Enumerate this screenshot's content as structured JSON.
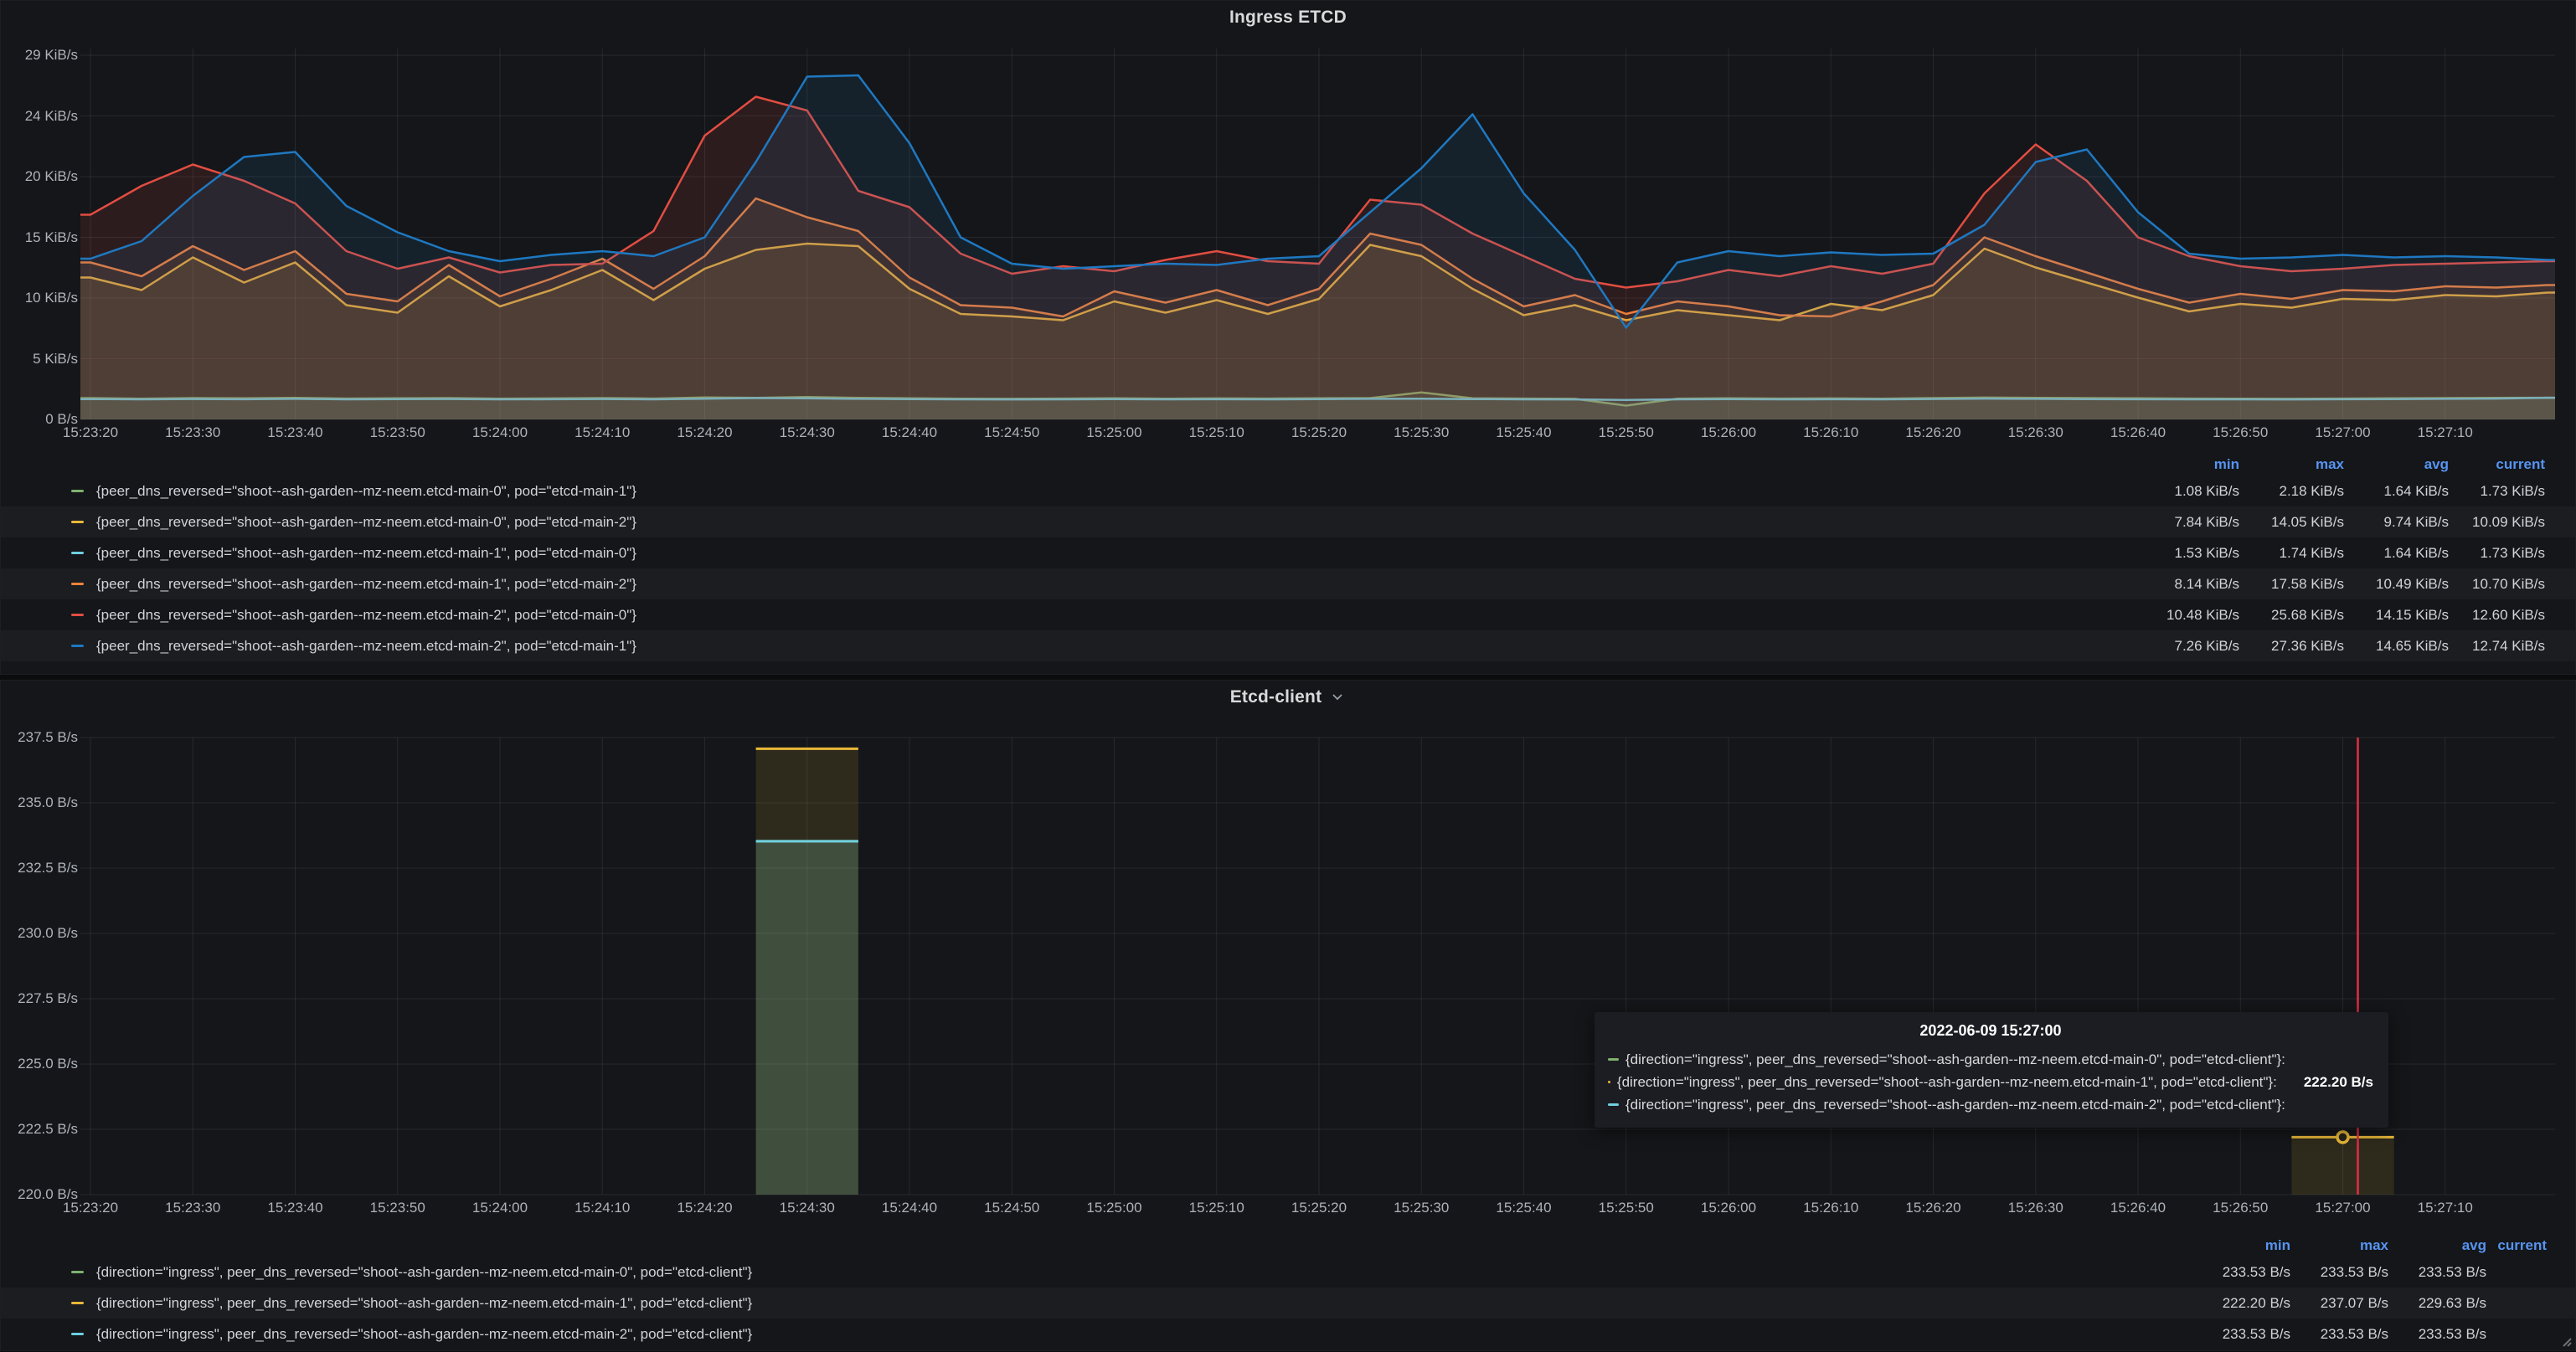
{
  "colors": {
    "green": "#7EB26D",
    "yellow": "#EAB839",
    "cyan": "#6ED0E0",
    "orange": "#EF843C",
    "red": "#E24D42",
    "blue": "#1F78C1",
    "stat_header": "#5794F2",
    "crosshair": "#E02F44",
    "panel_bg": "#141619",
    "grid": "rgba(204,204,220,0.10)"
  },
  "panels": [
    {
      "title": "Ingress ETCD",
      "y_ticks": [
        "29 KiB/s",
        "24 KiB/s",
        "20 KiB/s",
        "15 KiB/s",
        "10 KiB/s",
        "5 KiB/s",
        "0 B/s"
      ],
      "x_ticks": [
        "15:23:20",
        "15:23:30",
        "15:23:40",
        "15:23:50",
        "15:24:00",
        "15:24:10",
        "15:24:20",
        "15:24:30",
        "15:24:40",
        "15:24:50",
        "15:25:00",
        "15:25:10",
        "15:25:20",
        "15:25:30",
        "15:25:40",
        "15:25:50",
        "15:26:00",
        "15:26:10",
        "15:26:20",
        "15:26:30",
        "15:26:40",
        "15:26:50",
        "15:27:00",
        "15:27:10"
      ],
      "stats_headers": [
        "min",
        "max",
        "avg",
        "current"
      ],
      "legend": [
        {
          "color_key": "green",
          "label": "{peer_dns_reversed=\"shoot--ash-garden--mz-neem.etcd-main-0\", pod=\"etcd-main-1\"}",
          "min": "1.08 KiB/s",
          "max": "2.18 KiB/s",
          "avg": "1.64 KiB/s",
          "current": "1.73 KiB/s"
        },
        {
          "color_key": "yellow",
          "label": "{peer_dns_reversed=\"shoot--ash-garden--mz-neem.etcd-main-0\", pod=\"etcd-main-2\"}",
          "min": "7.84 KiB/s",
          "max": "14.05 KiB/s",
          "avg": "9.74 KiB/s",
          "current": "10.09 KiB/s"
        },
        {
          "color_key": "cyan",
          "label": "{peer_dns_reversed=\"shoot--ash-garden--mz-neem.etcd-main-1\", pod=\"etcd-main-0\"}",
          "min": "1.53 KiB/s",
          "max": "1.74 KiB/s",
          "avg": "1.64 KiB/s",
          "current": "1.73 KiB/s"
        },
        {
          "color_key": "orange",
          "label": "{peer_dns_reversed=\"shoot--ash-garden--mz-neem.etcd-main-1\", pod=\"etcd-main-2\"}",
          "min": "8.14 KiB/s",
          "max": "17.58 KiB/s",
          "avg": "10.49 KiB/s",
          "current": "10.70 KiB/s"
        },
        {
          "color_key": "red",
          "label": "{peer_dns_reversed=\"shoot--ash-garden--mz-neem.etcd-main-2\", pod=\"etcd-main-0\"}",
          "min": "10.48 KiB/s",
          "max": "25.68 KiB/s",
          "avg": "14.15 KiB/s",
          "current": "12.60 KiB/s"
        },
        {
          "color_key": "blue",
          "label": "{peer_dns_reversed=\"shoot--ash-garden--mz-neem.etcd-main-2\", pod=\"etcd-main-1\"}",
          "min": "7.26 KiB/s",
          "max": "27.36 KiB/s",
          "avg": "14.65 KiB/s",
          "current": "12.74 KiB/s"
        }
      ]
    },
    {
      "title": "Etcd-client",
      "y_ticks": [
        "237.5 B/s",
        "235.0 B/s",
        "232.5 B/s",
        "230.0 B/s",
        "227.5 B/s",
        "225.0 B/s",
        "222.5 B/s",
        "220.0 B/s"
      ],
      "x_ticks": [
        "15:23:20",
        "15:23:30",
        "15:23:40",
        "15:23:50",
        "15:24:00",
        "15:24:10",
        "15:24:20",
        "15:24:30",
        "15:24:40",
        "15:24:50",
        "15:25:00",
        "15:25:10",
        "15:25:20",
        "15:25:30",
        "15:25:40",
        "15:25:50",
        "15:26:00",
        "15:26:10",
        "15:26:20",
        "15:26:30",
        "15:26:40",
        "15:26:50",
        "15:27:00",
        "15:27:10"
      ],
      "stats_headers": [
        "min",
        "max",
        "avg",
        "current"
      ],
      "legend": [
        {
          "color_key": "green",
          "label": "{direction=\"ingress\", peer_dns_reversed=\"shoot--ash-garden--mz-neem.etcd-main-0\", pod=\"etcd-client\"}",
          "min": "233.53 B/s",
          "max": "233.53 B/s",
          "avg": "233.53 B/s",
          "current": ""
        },
        {
          "color_key": "yellow",
          "label": "{direction=\"ingress\", peer_dns_reversed=\"shoot--ash-garden--mz-neem.etcd-main-1\", pod=\"etcd-client\"}",
          "min": "222.20 B/s",
          "max": "237.07 B/s",
          "avg": "229.63 B/s",
          "current": ""
        },
        {
          "color_key": "cyan",
          "label": "{direction=\"ingress\", peer_dns_reversed=\"shoot--ash-garden--mz-neem.etcd-main-2\", pod=\"etcd-client\"}",
          "min": "233.53 B/s",
          "max": "233.53 B/s",
          "avg": "233.53 B/s",
          "current": ""
        }
      ],
      "tooltip": {
        "title": "2022-06-09 15:27:00",
        "rows": [
          {
            "color_key": "green",
            "label": "{direction=\"ingress\", peer_dns_reversed=\"shoot--ash-garden--mz-neem.etcd-main-0\", pod=\"etcd-client\"}:",
            "value": ""
          },
          {
            "color_key": "yellow",
            "label": "{direction=\"ingress\", peer_dns_reversed=\"shoot--ash-garden--mz-neem.etcd-main-1\", pod=\"etcd-client\"}:",
            "value": "222.20 B/s"
          },
          {
            "color_key": "cyan",
            "label": "{direction=\"ingress\", peer_dns_reversed=\"shoot--ash-garden--mz-neem.etcd-main-2\", pod=\"etcd-client\"}:",
            "value": ""
          }
        ]
      },
      "crosshair_time": "15:27:00"
    }
  ],
  "chart_data": [
    {
      "type": "area",
      "title": "Ingress ETCD",
      "unit": "KiB/s",
      "ylabel": "",
      "xlabel": "time",
      "ylim": [
        0,
        29
      ],
      "grid": true,
      "legend_position": "bottom-table",
      "x_start": "15:23:20",
      "x_end": "15:27:20",
      "x_step_seconds": 5,
      "series": [
        {
          "name": "{peer_dns_reversed=\"shoot--ash-garden--mz-neem.etcd-main-0\", pod=\"etcd-main-1\"}",
          "color_key": "green",
          "values": [
            1.7,
            1.65,
            1.7,
            1.68,
            1.72,
            1.66,
            1.68,
            1.7,
            1.65,
            1.67,
            1.7,
            1.66,
            1.75,
            1.72,
            1.78,
            1.72,
            1.68,
            1.65,
            1.64,
            1.66,
            1.68,
            1.65,
            1.67,
            1.66,
            1.68,
            1.7,
            2.15,
            1.68,
            1.66,
            1.64,
            1.1,
            1.65,
            1.68,
            1.66,
            1.67,
            1.65,
            1.7,
            1.74,
            1.72,
            1.7,
            1.68,
            1.66,
            1.65,
            1.64,
            1.66,
            1.68,
            1.7,
            1.72,
            1.73
          ]
        },
        {
          "name": "{peer_dns_reversed=\"shoot--ash-garden--mz-neem.etcd-main-0\", pod=\"etcd-main-2\"}",
          "color_key": "yellow",
          "values": [
            11.3,
            10.3,
            12.9,
            10.9,
            12.5,
            9.1,
            8.5,
            11.4,
            9.0,
            10.3,
            11.9,
            9.5,
            12.0,
            13.5,
            14.0,
            13.8,
            10.4,
            8.4,
            8.2,
            7.9,
            9.4,
            8.5,
            9.5,
            8.4,
            9.6,
            13.9,
            13.0,
            10.4,
            8.3,
            9.1,
            7.9,
            8.7,
            8.3,
            7.9,
            9.2,
            8.7,
            9.9,
            13.6,
            12.1,
            10.9,
            9.7,
            8.6,
            9.2,
            8.9,
            9.6,
            9.5,
            9.9,
            9.8,
            10.1
          ]
        },
        {
          "name": "{peer_dns_reversed=\"shoot--ash-garden--mz-neem.etcd-main-1\", pod=\"etcd-main-0\"}",
          "color_key": "cyan",
          "values": [
            1.62,
            1.6,
            1.63,
            1.61,
            1.64,
            1.6,
            1.62,
            1.63,
            1.6,
            1.61,
            1.63,
            1.6,
            1.65,
            1.7,
            1.68,
            1.64,
            1.62,
            1.6,
            1.59,
            1.6,
            1.62,
            1.6,
            1.61,
            1.6,
            1.62,
            1.64,
            1.65,
            1.62,
            1.6,
            1.59,
            1.55,
            1.6,
            1.62,
            1.6,
            1.61,
            1.6,
            1.63,
            1.66,
            1.64,
            1.62,
            1.61,
            1.6,
            1.6,
            1.59,
            1.61,
            1.62,
            1.64,
            1.66,
            1.73
          ]
        },
        {
          "name": "{peer_dns_reversed=\"shoot--ash-garden--mz-neem.etcd-main-1\", pod=\"etcd-main-2\"}",
          "color_key": "orange",
          "values": [
            12.5,
            11.4,
            13.8,
            11.9,
            13.4,
            10.0,
            9.4,
            12.3,
            9.8,
            11.2,
            12.8,
            10.4,
            13.0,
            17.6,
            16.1,
            15.0,
            11.3,
            9.1,
            8.9,
            8.2,
            10.2,
            9.3,
            10.3,
            9.1,
            10.4,
            14.8,
            13.9,
            11.2,
            9.0,
            9.9,
            8.4,
            9.4,
            9.0,
            8.3,
            8.2,
            9.4,
            10.7,
            14.5,
            13.0,
            11.7,
            10.4,
            9.3,
            10.0,
            9.6,
            10.3,
            10.2,
            10.6,
            10.5,
            10.7
          ]
        },
        {
          "name": "{peer_dns_reversed=\"shoot--ash-garden--mz-neem.etcd-main-2\", pod=\"etcd-main-0\"}",
          "color_key": "red",
          "values": [
            16.3,
            18.6,
            20.3,
            19.0,
            17.2,
            13.4,
            12.0,
            12.9,
            11.7,
            12.3,
            12.4,
            15.0,
            22.6,
            25.7,
            24.6,
            18.2,
            16.9,
            13.2,
            11.6,
            12.2,
            11.8,
            12.7,
            13.4,
            12.6,
            12.4,
            17.5,
            17.1,
            14.8,
            13.0,
            11.2,
            10.5,
            11.0,
            11.9,
            11.4,
            12.2,
            11.6,
            12.4,
            18.0,
            21.9,
            19.0,
            14.5,
            13.0,
            12.2,
            11.8,
            12.0,
            12.3,
            12.4,
            12.5,
            12.6
          ]
        },
        {
          "name": "{peer_dns_reversed=\"shoot--ash-garden--mz-neem.etcd-main-2\", pod=\"etcd-main-1\"}",
          "color_key": "blue",
          "values": [
            12.8,
            14.2,
            17.8,
            20.9,
            21.3,
            17.0,
            14.9,
            13.4,
            12.6,
            13.1,
            13.4,
            13.0,
            14.5,
            20.5,
            27.3,
            27.4,
            22.0,
            14.5,
            12.4,
            12.0,
            12.2,
            12.4,
            12.3,
            12.8,
            13.0,
            16.5,
            20.0,
            24.3,
            18.0,
            13.5,
            7.3,
            12.5,
            13.4,
            13.0,
            13.3,
            13.1,
            13.2,
            15.5,
            20.5,
            21.5,
            16.5,
            13.2,
            12.8,
            12.9,
            13.1,
            12.9,
            13.0,
            12.9,
            12.7
          ]
        }
      ]
    },
    {
      "type": "bar",
      "title": "Etcd-client",
      "unit": "B/s",
      "ylabel": "",
      "xlabel": "time",
      "ylim": [
        220.0,
        237.5
      ],
      "grid": true,
      "legend_position": "bottom-table",
      "bar_width_seconds": 10,
      "series": [
        {
          "name": "{direction=\"ingress\", peer_dns_reversed=\"shoot--ash-garden--mz-neem.etcd-main-0\", pod=\"etcd-client\"}",
          "color_key": "green",
          "points": [
            {
              "time": "15:24:30",
              "value": 233.53
            }
          ]
        },
        {
          "name": "{direction=\"ingress\", peer_dns_reversed=\"shoot--ash-garden--mz-neem.etcd-main-1\", pod=\"etcd-client\"}",
          "color_key": "yellow",
          "points": [
            {
              "time": "15:24:30",
              "value": 237.07
            },
            {
              "time": "15:27:00",
              "value": 222.2,
              "hovered": true
            }
          ]
        },
        {
          "name": "{direction=\"ingress\", peer_dns_reversed=\"shoot--ash-garden--mz-neem.etcd-main-2\", pod=\"etcd-client\"}",
          "color_key": "cyan",
          "points": [
            {
              "time": "15:24:30",
              "value": 233.53
            }
          ]
        }
      ]
    }
  ]
}
